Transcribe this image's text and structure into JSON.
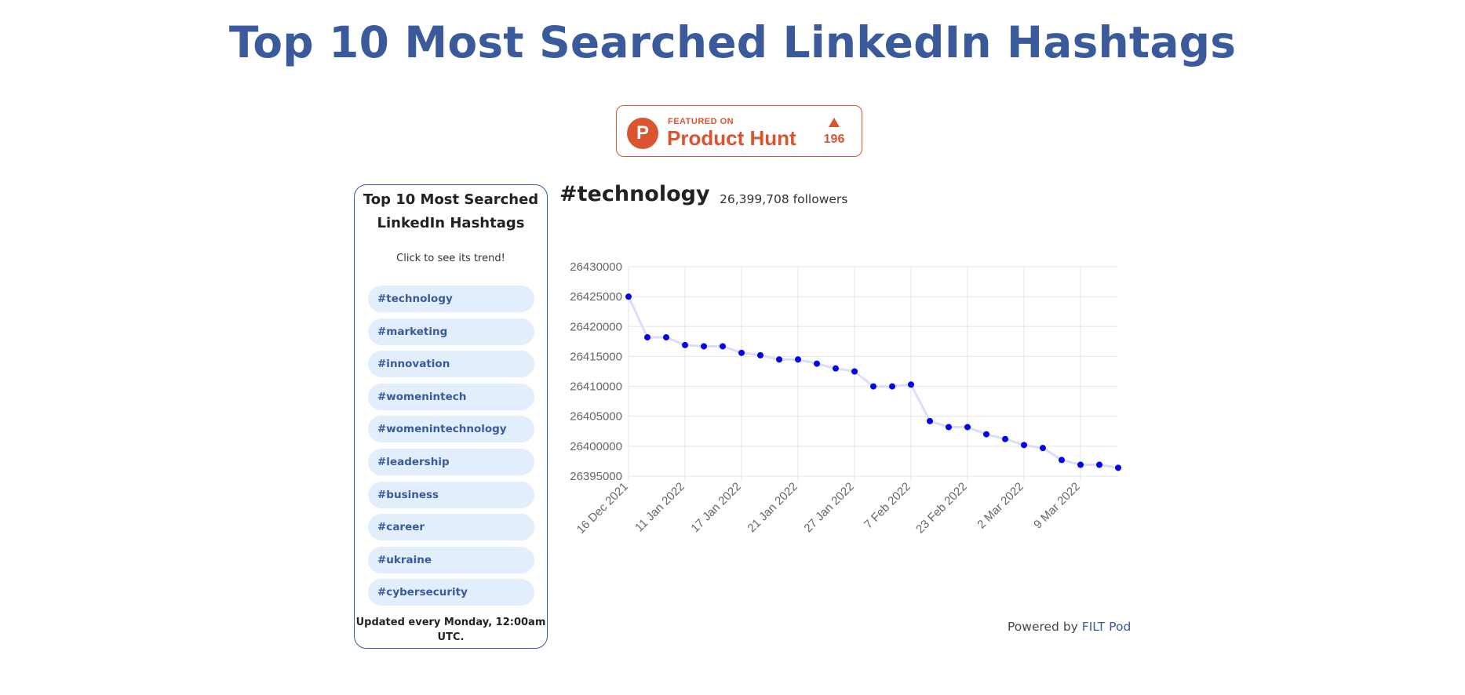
{
  "page": {
    "title": "Top 10 Most Searched LinkedIn Hashtags"
  },
  "badge": {
    "featured": "FEATURED ON",
    "name": "Product Hunt",
    "count": "196",
    "logo_letter": "P",
    "color": "#da552f"
  },
  "sidebar": {
    "title": "Top 10 Most Searched LinkedIn Hashtags",
    "subtitle": "Click to see its trend!",
    "items": [
      {
        "label": "#technology"
      },
      {
        "label": "#marketing"
      },
      {
        "label": "#innovation"
      },
      {
        "label": "#womenintech"
      },
      {
        "label": "#womenintechnology"
      },
      {
        "label": "#leadership"
      },
      {
        "label": "#business"
      },
      {
        "label": "#career"
      },
      {
        "label": "#ukraine"
      },
      {
        "label": "#cybersecurity"
      }
    ],
    "footer": "Updated every Monday, 12:00am UTC."
  },
  "main": {
    "hashtag": "#technology",
    "followers": "26,399,708 followers"
  },
  "footer": {
    "powered_by": "Powered by",
    "link": "FILT Pod"
  },
  "colors": {
    "accent": "#3a5a9c",
    "pill_bg": "#e3eefc",
    "point": "#0000ee",
    "line": "#dcdcff"
  },
  "chart_data": {
    "type": "line",
    "title": "",
    "xlabel": "",
    "ylabel": "",
    "ylim": [
      26395000,
      26430000
    ],
    "yticks": [
      26430000,
      26425000,
      26420000,
      26415000,
      26410000,
      26405000,
      26400000,
      26395000
    ],
    "tick_labels": [
      "16 Dec 2021",
      "11 Jan 2022",
      "17 Jan 2022",
      "21 Jan 2022",
      "27 Jan 2022",
      "7 Feb 2022",
      "23 Feb 2022",
      "2 Mar 2022",
      "9 Mar 2022"
    ],
    "grid": true,
    "series": [
      {
        "values": [
          26425000,
          26418200,
          26418200,
          26416900,
          26416700,
          26416700,
          26415600,
          26415200,
          26414500,
          26414500,
          26413800,
          26413000,
          26412500,
          26410000,
          26410000,
          26410300,
          26404200,
          26403200,
          26403200,
          26402000,
          26401200,
          26400200,
          26399700,
          26397700,
          26396900,
          26396900,
          26396400
        ]
      }
    ]
  }
}
